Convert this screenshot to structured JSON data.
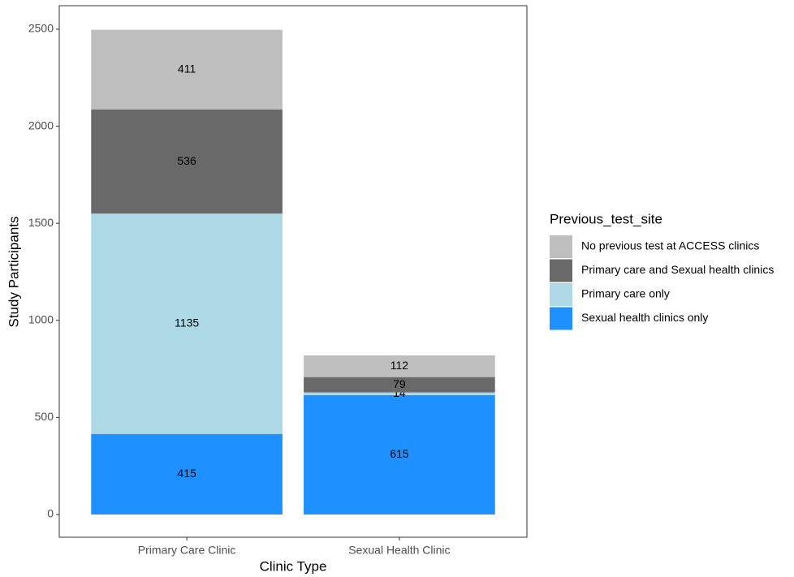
{
  "chart_data": {
    "type": "stacked-bar",
    "x_label": "Clinic Type",
    "y_label": "Study Participants",
    "categories": [
      "Primary Care Clinic",
      "Sexual Health Clinic"
    ],
    "legend_title": "Previous_test_site",
    "series": [
      {
        "name": "No previous test at ACCESS clinics",
        "color": "#bebebe",
        "values": [
          411,
          112
        ]
      },
      {
        "name": "Primary care and Sexual health clinics",
        "color": "#696969",
        "values": [
          536,
          79
        ]
      },
      {
        "name": "Primary care only",
        "color": "#add8e6",
        "values": [
          1135,
          14
        ]
      },
      {
        "name": "Sexual health clinics only",
        "color": "#1e90ff",
        "values": [
          415,
          615
        ]
      }
    ],
    "ylim": [
      -117,
      2621
    ],
    "yticks": [
      0,
      500,
      1000,
      1500,
      2000,
      2500
    ],
    "grid": false,
    "legend": "right"
  }
}
